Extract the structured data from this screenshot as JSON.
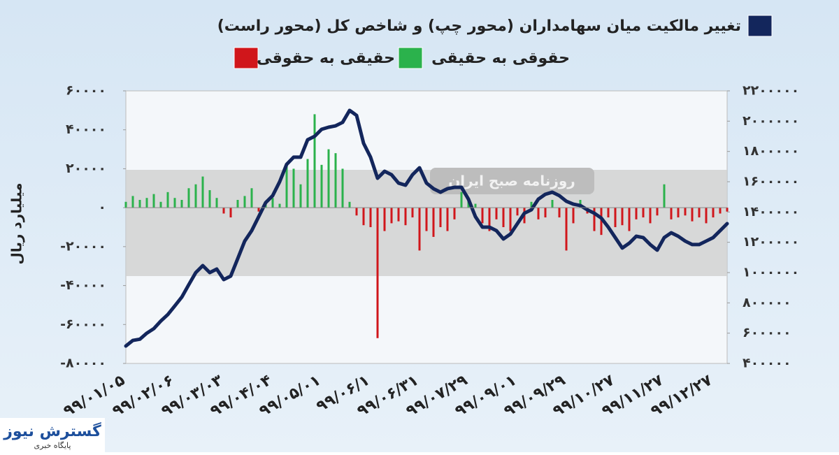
{
  "chart_data": {
    "type": "combo",
    "y_label": "میلیارد ریال",
    "watermark": "روزنامه صبح ایران",
    "logo": {
      "name": "گسترش نیوز",
      "tagline": "پایگاه خبری"
    },
    "categories": [
      "۹۹/۰۱/۰۵",
      null,
      null,
      null,
      null,
      null,
      null,
      "۹۹/۰۲/۰۶",
      null,
      null,
      null,
      null,
      null,
      null,
      "۹۹/۰۳/۰۳",
      null,
      null,
      null,
      null,
      null,
      null,
      "۹۹/۰۴/۰۴",
      null,
      null,
      null,
      null,
      null,
      null,
      "۹۹/۰۵/۰۱",
      null,
      null,
      null,
      null,
      null,
      null,
      "۹۹/۰۶/۱",
      null,
      null,
      null,
      null,
      null,
      null,
      "۹۹/۰۶/۳۱",
      null,
      null,
      null,
      null,
      null,
      null,
      "۹۹/۰۷/۲۹",
      null,
      null,
      null,
      null,
      null,
      null,
      "۹۹/۰۹/۰۱",
      null,
      null,
      null,
      null,
      null,
      null,
      "۹۹/۰۹/۲۹",
      null,
      null,
      null,
      null,
      null,
      null,
      "۹۹/۱۰/۲۷",
      null,
      null,
      null,
      null,
      null,
      null,
      "۹۹/۱۱/۲۷",
      null,
      null,
      null,
      null,
      null,
      null,
      "۹۹/۱۲/۲۷",
      null,
      null
    ],
    "series": [
      {
        "name": "تغییر مالکیت میان سهامداران (محور چپ) و شاخص کل (محور راست)",
        "type": "line",
        "axis": "y2",
        "color": "#13265c",
        "values": [
          515000,
          552000,
          560000,
          600000,
          630000,
          680000,
          723000,
          780000,
          838000,
          920000,
          1000000,
          1046000,
          1000000,
          1023000,
          954000,
          977000,
          1092000,
          1208000,
          1277000,
          1369000,
          1462000,
          1508000,
          1600000,
          1715000,
          1762000,
          1762000,
          1877000,
          1900000,
          1946000,
          1960000,
          1969000,
          1992000,
          2071000,
          2038000,
          1854000,
          1762000,
          1623000,
          1669000,
          1646000,
          1591000,
          1577000,
          1646000,
          1692000,
          1591000,
          1554000,
          1531000,
          1554000,
          1563000,
          1563000,
          1485000,
          1369000,
          1300000,
          1300000,
          1277000,
          1222000,
          1254000,
          1323000,
          1392000,
          1415000,
          1485000,
          1517000,
          1531000,
          1508000,
          1471000,
          1452000,
          1443000,
          1415000,
          1392000,
          1360000,
          1300000,
          1231000,
          1162000,
          1194000,
          1240000,
          1231000,
          1185000,
          1148000,
          1231000,
          1263000,
          1240000,
          1208000,
          1185000,
          1185000,
          1208000,
          1231000,
          1277000,
          1323000
        ]
      },
      {
        "name": "حقوقی به حقیقی",
        "type": "bar",
        "color": "#2bb24c",
        "values": [
          3000,
          6000,
          4000,
          5000,
          7000,
          3000,
          8000,
          5000,
          4000,
          10000,
          12000,
          16000,
          9000,
          5000,
          null,
          null,
          4000,
          6000,
          10000,
          null,
          3000,
          5000,
          2000,
          22000,
          20000,
          12000,
          25000,
          48000,
          22000,
          30000,
          28000,
          20000,
          3000,
          null,
          null,
          null,
          null,
          null,
          null,
          null,
          null,
          null,
          null,
          null,
          null,
          null,
          null,
          null,
          8000,
          4000,
          2000,
          null,
          null,
          null,
          null,
          null,
          null,
          null,
          3000,
          null,
          null,
          4000,
          null,
          null,
          null,
          4000,
          null,
          null,
          null,
          null,
          null,
          null,
          null,
          null,
          null,
          null,
          null,
          12000,
          null,
          null,
          null,
          null,
          null,
          null,
          null,
          null,
          null
        ]
      },
      {
        "name": "حقیقی به حقوقی",
        "type": "bar",
        "color": "#d0161b",
        "values": [
          null,
          null,
          null,
          null,
          null,
          null,
          null,
          null,
          null,
          null,
          null,
          null,
          null,
          null,
          -3000,
          -5000,
          null,
          null,
          null,
          -2000,
          null,
          null,
          null,
          null,
          null,
          null,
          null,
          null,
          null,
          null,
          null,
          null,
          null,
          -4000,
          -9000,
          -10000,
          -67000,
          -12000,
          -8000,
          -7000,
          -9000,
          -5000,
          -22000,
          -12000,
          -15000,
          -10000,
          -12000,
          -6000,
          null,
          null,
          null,
          -8000,
          -12000,
          -6000,
          -10000,
          -12000,
          -4000,
          -8000,
          null,
          -6000,
          -5000,
          null,
          -5000,
          -22000,
          -8000,
          null,
          -3000,
          -12000,
          -14000,
          -5000,
          -10000,
          -9000,
          -12000,
          -6000,
          -5000,
          -8000,
          -4000,
          null,
          -6000,
          -5000,
          -4000,
          -7000,
          -5000,
          -8000,
          -5000,
          -3000,
          -2000
        ]
      }
    ],
    "ylim": [
      -80000,
      60000
    ],
    "yticks": [
      {
        "value": 60000,
        "label": "۶۰۰۰۰"
      },
      {
        "value": 40000,
        "label": "۴۰۰۰۰"
      },
      {
        "value": 20000,
        "label": "۲۰۰۰۰"
      },
      {
        "value": 0,
        "label": "۰"
      },
      {
        "value": -20000,
        "label": "-۲۰۰۰۰"
      },
      {
        "value": -40000,
        "label": "-۴۰۰۰۰"
      },
      {
        "value": -60000,
        "label": "-۶۰۰۰۰"
      },
      {
        "value": -80000,
        "label": "-۸۰۰۰۰"
      }
    ],
    "y2lim": [
      400000,
      2200000
    ],
    "y2ticks": [
      {
        "value": 2200000,
        "label": "۲۲۰۰۰۰۰"
      },
      {
        "value": 2000000,
        "label": "۲۰۰۰۰۰۰"
      },
      {
        "value": 1800000,
        "label": "۱۸۰۰۰۰۰"
      },
      {
        "value": 1600000,
        "label": "۱۶۰۰۰۰۰"
      },
      {
        "value": 1400000,
        "label": "۱۴۰۰۰۰۰"
      },
      {
        "value": 1200000,
        "label": "۱۲۰۰۰۰۰"
      },
      {
        "value": 1000000,
        "label": "۱۰۰۰۰۰۰"
      },
      {
        "value": 800000,
        "label": "۸۰۰۰۰۰"
      },
      {
        "value": 600000,
        "label": "۶۰۰۰۰۰"
      },
      {
        "value": 400000,
        "label": "۴۰۰۰۰۰"
      }
    ]
  }
}
